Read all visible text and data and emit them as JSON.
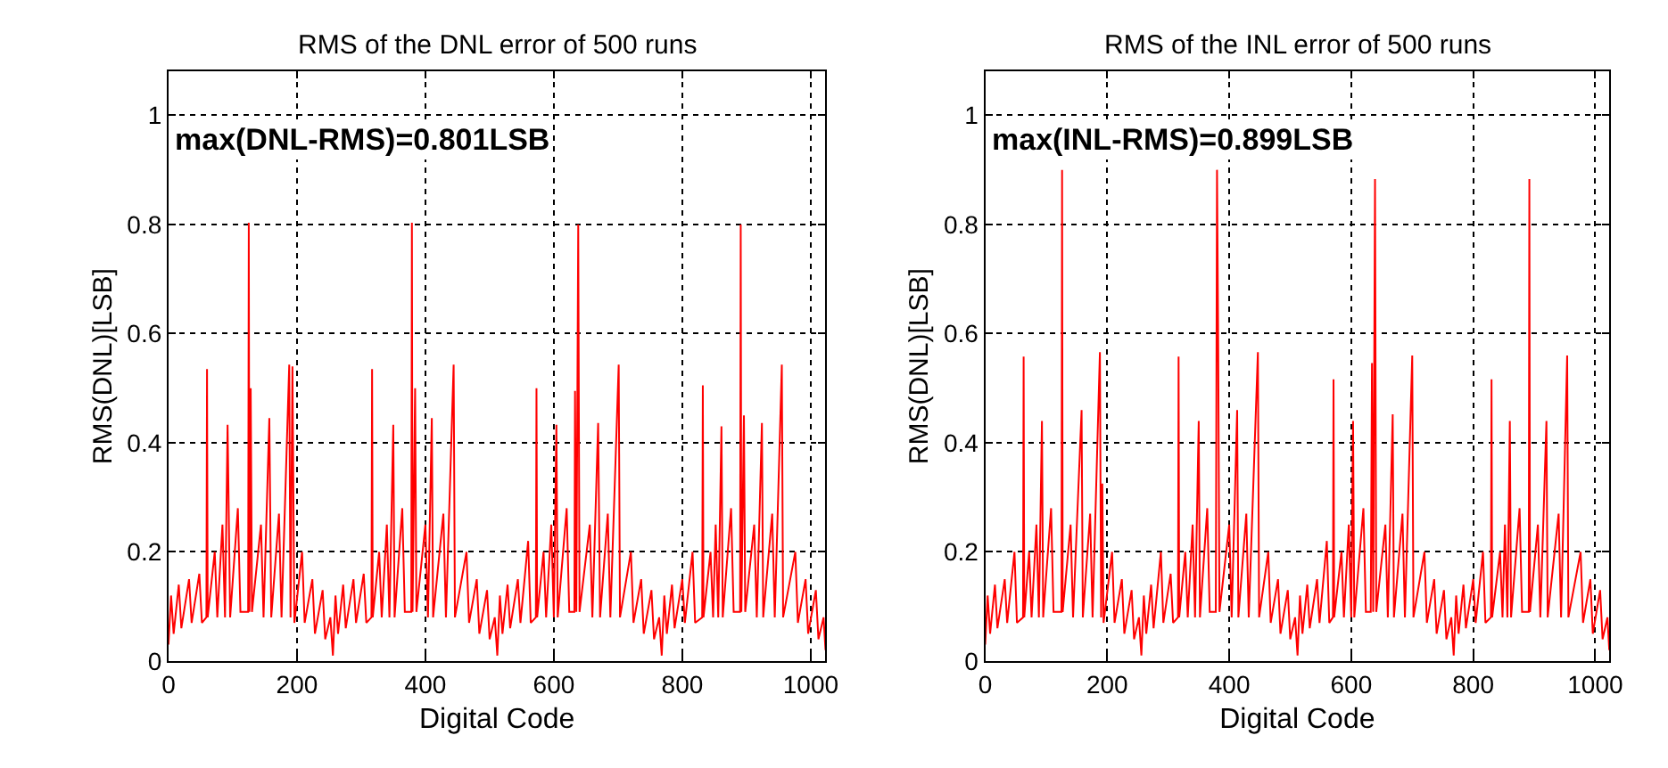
{
  "chart_data": [
    {
      "type": "line",
      "title": "RMS of the DNL error of 500 runs",
      "xlabel": "Digital Code",
      "ylabel": "RMS(DNL)[LSB]",
      "annotations": [
        "max(DNL-RMS)=0.801LSB"
      ],
      "xlim": [
        0,
        1023
      ],
      "ylim": [
        0,
        1.08
      ],
      "xticks": [
        0,
        200,
        400,
        600,
        800,
        1000
      ],
      "yticks": [
        0,
        0.2,
        0.4,
        0.6,
        0.8,
        1
      ],
      "grid": true,
      "marker": "none",
      "line_style": "solid",
      "series": [
        {
          "color": "#ff0000",
          "x": [
            0,
            4,
            8,
            16,
            20,
            32,
            36,
            48,
            52,
            59,
            60,
            61,
            72,
            76,
            84,
            88,
            92,
            96,
            108,
            112,
            124,
            125,
            126,
            128,
            130,
            144,
            148,
            157,
            160,
            172,
            176,
            188,
            190,
            193,
            196,
            208,
            212,
            224,
            228,
            240,
            244,
            252,
            256,
            260,
            264,
            272,
            276,
            288,
            292,
            304,
            308,
            316,
            317,
            318,
            328,
            332,
            340,
            344,
            350,
            352,
            364,
            368,
            378,
            379,
            380,
            384,
            386,
            400,
            404,
            410,
            412,
            428,
            432,
            444,
            446,
            464,
            468,
            480,
            484,
            496,
            500,
            508,
            512,
            516,
            520,
            528,
            532,
            544,
            548,
            560,
            564,
            572,
            573,
            574,
            584,
            588,
            596,
            600,
            604,
            606,
            620,
            624,
            632,
            633,
            635,
            638,
            640,
            656,
            660,
            669,
            672,
            684,
            688,
            701,
            703,
            720,
            724,
            736,
            740,
            752,
            756,
            764,
            768,
            772,
            776,
            784,
            788,
            800,
            804,
            816,
            820,
            831,
            832,
            833,
            844,
            848,
            852,
            856,
            861,
            863,
            876,
            880,
            890,
            891,
            892,
            896,
            898,
            912,
            916,
            924,
            926,
            940,
            944,
            955,
            957,
            976,
            980,
            992,
            996,
            1008,
            1012,
            1020,
            1023
          ],
          "values": [
            0.03,
            0.12,
            0.05,
            0.14,
            0.06,
            0.15,
            0.07,
            0.16,
            0.07,
            0.08,
            0.535,
            0.08,
            0.2,
            0.08,
            0.25,
            0.08,
            0.433,
            0.08,
            0.28,
            0.09,
            0.09,
            0.803,
            0.09,
            0.5,
            0.09,
            0.25,
            0.08,
            0.445,
            0.08,
            0.27,
            0.08,
            0.543,
            0.08,
            0.54,
            0.07,
            0.2,
            0.07,
            0.15,
            0.05,
            0.13,
            0.04,
            0.08,
            0.01,
            0.12,
            0.05,
            0.14,
            0.06,
            0.15,
            0.07,
            0.16,
            0.07,
            0.08,
            0.535,
            0.08,
            0.2,
            0.08,
            0.25,
            0.08,
            0.433,
            0.08,
            0.28,
            0.09,
            0.09,
            0.803,
            0.09,
            0.5,
            0.09,
            0.25,
            0.08,
            0.445,
            0.08,
            0.27,
            0.08,
            0.543,
            0.08,
            0.2,
            0.07,
            0.15,
            0.05,
            0.13,
            0.04,
            0.08,
            0.01,
            0.12,
            0.05,
            0.14,
            0.06,
            0.15,
            0.07,
            0.22,
            0.07,
            0.08,
            0.5,
            0.08,
            0.2,
            0.08,
            0.25,
            0.08,
            0.433,
            0.08,
            0.28,
            0.09,
            0.09,
            0.495,
            0.09,
            0.8,
            0.09,
            0.25,
            0.08,
            0.436,
            0.08,
            0.27,
            0.08,
            0.543,
            0.08,
            0.2,
            0.07,
            0.15,
            0.05,
            0.13,
            0.04,
            0.08,
            0.01,
            0.12,
            0.05,
            0.14,
            0.06,
            0.15,
            0.07,
            0.2,
            0.07,
            0.08,
            0.505,
            0.08,
            0.2,
            0.08,
            0.25,
            0.08,
            0.43,
            0.08,
            0.28,
            0.09,
            0.09,
            0.8,
            0.09,
            0.45,
            0.09,
            0.25,
            0.08,
            0.436,
            0.08,
            0.27,
            0.08,
            0.543,
            0.08,
            0.2,
            0.07,
            0.15,
            0.05,
            0.13,
            0.04,
            0.08,
            0.02
          ]
        }
      ]
    },
    {
      "type": "line",
      "title": "RMS of the INL error of 500 runs",
      "xlabel": "Digital Code",
      "ylabel": "RMS(DNL)[LSB]",
      "annotations": [
        "max(INL-RMS)=0.899LSB"
      ],
      "xlim": [
        0,
        1023
      ],
      "ylim": [
        0,
        1.08
      ],
      "xticks": [
        0,
        200,
        400,
        600,
        800,
        1000
      ],
      "yticks": [
        0,
        0.2,
        0.4,
        0.6,
        0.8,
        1
      ],
      "grid": true,
      "marker": "none",
      "line_style": "solid",
      "series": [
        {
          "color": "#ff0000",
          "x": [
            0,
            4,
            8,
            16,
            20,
            32,
            36,
            48,
            52,
            62,
            63,
            64,
            72,
            76,
            84,
            88,
            93,
            95,
            108,
            112,
            125,
            126,
            127,
            140,
            144,
            158,
            160,
            172,
            176,
            188,
            190,
            192,
            194,
            208,
            212,
            224,
            228,
            240,
            244,
            252,
            256,
            260,
            264,
            272,
            276,
            288,
            292,
            304,
            308,
            316,
            317,
            318,
            328,
            332,
            340,
            344,
            350,
            352,
            364,
            368,
            378,
            380,
            382,
            384,
            400,
            404,
            413,
            415,
            428,
            432,
            447,
            449,
            464,
            468,
            480,
            484,
            496,
            500,
            508,
            512,
            516,
            520,
            528,
            532,
            544,
            548,
            560,
            564,
            570,
            571,
            572,
            584,
            588,
            596,
            600,
            603,
            605,
            620,
            624,
            632,
            634,
            636,
            639,
            641,
            656,
            660,
            668,
            670,
            684,
            688,
            700,
            702,
            720,
            724,
            736,
            740,
            752,
            756,
            764,
            768,
            772,
            776,
            784,
            788,
            800,
            804,
            816,
            820,
            829,
            830,
            831,
            844,
            848,
            852,
            856,
            860,
            862,
            876,
            880,
            891,
            892,
            893,
            906,
            910,
            920,
            922,
            940,
            944,
            954,
            956,
            976,
            980,
            992,
            996,
            1008,
            1012,
            1020,
            1023
          ],
          "values": [
            0.03,
            0.12,
            0.05,
            0.14,
            0.06,
            0.15,
            0.07,
            0.2,
            0.07,
            0.08,
            0.558,
            0.08,
            0.2,
            0.08,
            0.25,
            0.08,
            0.44,
            0.08,
            0.28,
            0.09,
            0.09,
            0.9,
            0.09,
            0.25,
            0.08,
            0.46,
            0.08,
            0.27,
            0.08,
            0.566,
            0.08,
            0.325,
            0.07,
            0.2,
            0.07,
            0.15,
            0.05,
            0.13,
            0.04,
            0.08,
            0.01,
            0.12,
            0.05,
            0.14,
            0.06,
            0.2,
            0.07,
            0.16,
            0.07,
            0.08,
            0.558,
            0.08,
            0.2,
            0.08,
            0.25,
            0.08,
            0.44,
            0.08,
            0.28,
            0.09,
            0.09,
            0.9,
            0.566,
            0.09,
            0.25,
            0.08,
            0.46,
            0.08,
            0.27,
            0.08,
            0.566,
            0.08,
            0.2,
            0.07,
            0.15,
            0.05,
            0.13,
            0.04,
            0.08,
            0.01,
            0.12,
            0.05,
            0.14,
            0.06,
            0.15,
            0.07,
            0.22,
            0.07,
            0.08,
            0.516,
            0.08,
            0.2,
            0.08,
            0.25,
            0.08,
            0.44,
            0.08,
            0.28,
            0.09,
            0.09,
            0.546,
            0.09,
            0.883,
            0.09,
            0.25,
            0.08,
            0.452,
            0.08,
            0.27,
            0.08,
            0.56,
            0.08,
            0.2,
            0.07,
            0.15,
            0.05,
            0.13,
            0.04,
            0.08,
            0.01,
            0.12,
            0.05,
            0.14,
            0.06,
            0.15,
            0.07,
            0.2,
            0.07,
            0.08,
            0.516,
            0.08,
            0.2,
            0.08,
            0.25,
            0.08,
            0.44,
            0.08,
            0.28,
            0.09,
            0.09,
            0.883,
            0.09,
            0.25,
            0.08,
            0.44,
            0.08,
            0.27,
            0.08,
            0.56,
            0.08,
            0.2,
            0.07,
            0.15,
            0.05,
            0.13,
            0.04,
            0.08,
            0.02
          ]
        }
      ]
    }
  ]
}
